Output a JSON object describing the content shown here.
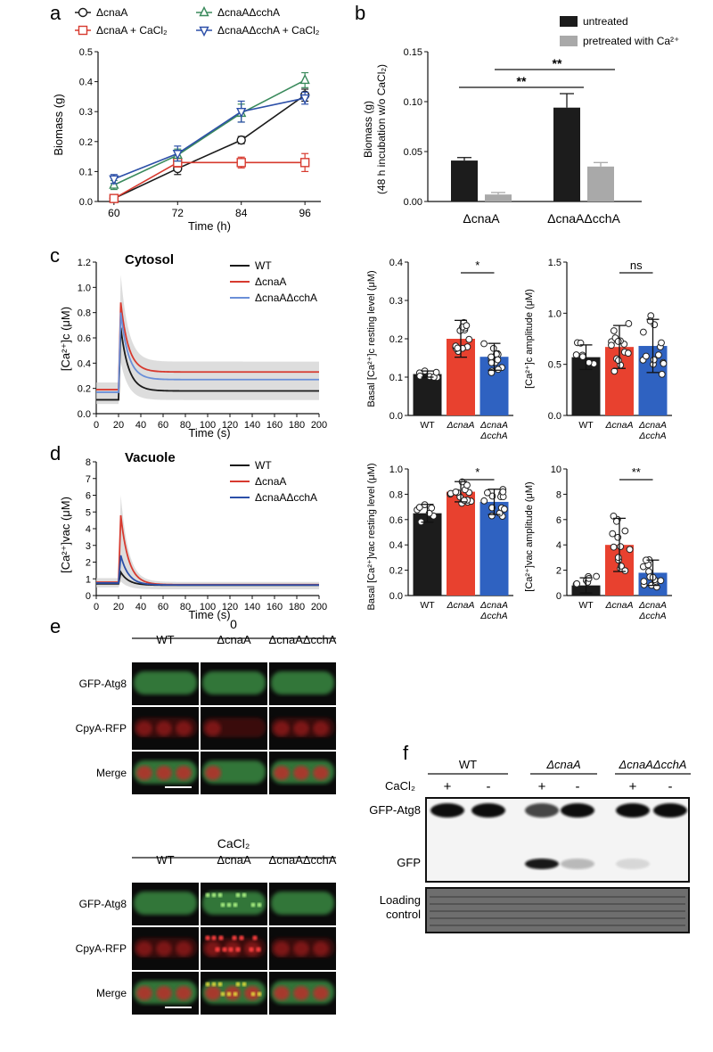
{
  "panel_labels": [
    "a",
    "b",
    "c",
    "d",
    "e",
    "f"
  ],
  "colors": {
    "black": "#1a1a1a",
    "red": "#d73a2f",
    "green": "#3a8a5c",
    "blue": "#2c4fa8",
    "lightblue": "#6a8fd8",
    "gray": "#a9a9a9",
    "bar_black": "#1c1c1c",
    "bar_red": "#e8412f",
    "bar_blue": "#2f62c1",
    "shade": "#cfcfcf"
  },
  "chart_data": [
    {
      "id": "a",
      "type": "line",
      "xlabel": "Time (h)",
      "ylabel": "Biomass (g)",
      "x": [
        60,
        72,
        84,
        96
      ],
      "xlim": [
        57,
        99
      ],
      "ylim": [
        0,
        0.5
      ],
      "yticks": [
        "0.0",
        "0.1",
        "0.2",
        "0.3",
        "0.4",
        "0.5"
      ],
      "xticks": [
        "60",
        "72",
        "84",
        "96"
      ],
      "series": [
        {
          "name": "ΔcnaA",
          "color": "#1a1a1a",
          "marker": "circle",
          "values": [
            0.01,
            0.11,
            0.205,
            0.355
          ],
          "err": [
            0.005,
            0.02,
            0.012,
            0.02
          ]
        },
        {
          "name": "ΔcnaA + CaCl₂",
          "color": "#d73a2f",
          "marker": "square",
          "values": [
            0.01,
            0.13,
            0.13,
            0.13
          ],
          "err": [
            0.005,
            0.015,
            0.018,
            0.03
          ]
        },
        {
          "name": "ΔcnaAΔcchA",
          "color": "#3a8a5c",
          "marker": "triangle-up",
          "values": [
            0.055,
            0.155,
            0.295,
            0.405
          ],
          "err": [
            0.015,
            0.02,
            0.03,
            0.025
          ]
        },
        {
          "name": "ΔcnaAΔcchA + CaCl₂",
          "color": "#2c4fa8",
          "marker": "triangle-down",
          "values": [
            0.075,
            0.16,
            0.3,
            0.345
          ],
          "err": [
            0.015,
            0.025,
            0.035,
            0.02
          ]
        }
      ],
      "legend": "top"
    },
    {
      "id": "b",
      "type": "bar",
      "ylabel_line1": "Biomass (g)",
      "ylabel_line2": "(48 h incubation w/o CaCl₂)",
      "categories": [
        "ΔcnaA",
        "ΔcnaAΔcchA"
      ],
      "ylim": [
        0,
        0.15
      ],
      "yticks": [
        "0.00",
        "0.05",
        "0.10",
        "0.15"
      ],
      "series": [
        {
          "name": "untreated",
          "color": "#1c1c1c",
          "values": [
            0.041,
            0.094
          ],
          "err": [
            0.003,
            0.014
          ]
        },
        {
          "name": "pretreated with Ca²⁺",
          "color": "#a9a9a9",
          "values": [
            0.007,
            0.035
          ],
          "err": [
            0.002,
            0.004
          ]
        }
      ],
      "significance": [
        "**",
        "**"
      ],
      "legend": "top-right"
    },
    {
      "id": "c_trace",
      "type": "line",
      "title": "Cytosol",
      "xlabel": "Time (s)",
      "ylabel": "[Ca²⁺]c  (μM)",
      "xlim": [
        0,
        200
      ],
      "ylim": [
        0,
        1.2
      ],
      "xticks": [
        "0",
        "20",
        "40",
        "60",
        "80",
        "100",
        "120",
        "140",
        "160",
        "180",
        "200"
      ],
      "yticks": [
        "0.0",
        "0.2",
        "0.4",
        "0.6",
        "0.8",
        "1.0",
        "1.2"
      ],
      "series": [
        {
          "name": "WT",
          "color": "#1a1a1a",
          "baseline": 0.11,
          "peak": 0.68,
          "plateau": 0.18
        },
        {
          "name": "ΔcnaA",
          "color": "#d73a2f",
          "baseline": 0.19,
          "peak": 0.88,
          "plateau": 0.33
        },
        {
          "name": "ΔcnaAΔcchA",
          "color": "#6a8fd8",
          "baseline": 0.17,
          "peak": 0.8,
          "plateau": 0.27
        }
      ],
      "legend": "top-right"
    },
    {
      "id": "c_basal",
      "type": "bar",
      "ylabel": "Basal [Ca²⁺]c resting level (μM)",
      "categories": [
        "WT",
        "ΔcnaA",
        "ΔcnaA ΔcchA"
      ],
      "values": [
        0.108,
        0.2,
        0.153
      ],
      "err": [
        0.008,
        0.048,
        0.035
      ],
      "ylim": [
        0,
        0.4
      ],
      "yticks": [
        "0.0",
        "0.1",
        "0.2",
        "0.3",
        "0.4"
      ],
      "significance": "*"
    },
    {
      "id": "c_amp",
      "type": "bar",
      "ylabel": "[Ca²⁺]c amplitude (μM)",
      "categories": [
        "WT",
        "ΔcnaA",
        "ΔcnaA ΔcchA"
      ],
      "values": [
        0.57,
        0.67,
        0.68
      ],
      "err": [
        0.12,
        0.21,
        0.26
      ],
      "ylim": [
        0,
        1.5
      ],
      "yticks": [
        "0.0",
        "0.5",
        "1.0",
        "1.5"
      ],
      "significance": "ns"
    },
    {
      "id": "d_trace",
      "type": "line",
      "title": "Vacuole",
      "xlabel": "Time (s)",
      "ylabel": "[Ca²⁺]vac  (μM)",
      "xlim": [
        0,
        200
      ],
      "ylim": [
        0,
        8
      ],
      "xticks": [
        "0",
        "20",
        "40",
        "60",
        "80",
        "100",
        "120",
        "140",
        "160",
        "180",
        "200"
      ],
      "yticks": [
        "0",
        "1",
        "2",
        "3",
        "4",
        "5",
        "6",
        "7",
        "8"
      ],
      "series": [
        {
          "name": "WT",
          "color": "#1a1a1a",
          "baseline": 0.7,
          "peak": 1.4,
          "plateau": 0.62
        },
        {
          "name": "ΔcnaA",
          "color": "#d73a2f",
          "baseline": 0.8,
          "peak": 4.8,
          "plateau": 0.65
        },
        {
          "name": "ΔcnaAΔcchA",
          "color": "#2c4fa8",
          "baseline": 0.75,
          "peak": 2.4,
          "plateau": 0.63
        }
      ],
      "legend": "top-right"
    },
    {
      "id": "d_basal",
      "type": "bar",
      "ylabel": "Basal [Ca²⁺]vac resting level (μM)",
      "categories": [
        "WT",
        "ΔcnaA",
        "ΔcnaA ΔcchA"
      ],
      "values": [
        0.65,
        0.82,
        0.74
      ],
      "err": [
        0.07,
        0.08,
        0.1
      ],
      "ylim": [
        0,
        1.0
      ],
      "yticks": [
        "0.0",
        "0.2",
        "0.4",
        "0.6",
        "0.8",
        "1.0"
      ],
      "significance": "*"
    },
    {
      "id": "d_amp",
      "type": "bar",
      "ylabel": "[Ca²⁺]vac amplitude (μM)",
      "categories": [
        "WT",
        "ΔcnaA",
        "ΔcnaA ΔcchA"
      ],
      "values": [
        0.8,
        4.0,
        1.8
      ],
      "err": [
        0.6,
        2.1,
        1.0
      ],
      "ylim": [
        0,
        10
      ],
      "yticks": [
        "0",
        "2",
        "4",
        "6",
        "8",
        "10"
      ],
      "significance": "**"
    }
  ],
  "panel_e": {
    "group_top": "0",
    "group_bottom": "CaCl₂",
    "columns": [
      "WT",
      "ΔcnaA",
      "ΔcnaAΔcchA"
    ],
    "rows": [
      "GFP-Atg8",
      "CpyA-RFP",
      "Merge"
    ]
  },
  "panel_f": {
    "strains": [
      "WT",
      "ΔcnaA",
      "ΔcnaAΔcchA"
    ],
    "treatment_label": "CaCl₂",
    "lanes": [
      "+",
      "-",
      "+",
      "-",
      "+",
      "-"
    ],
    "band_labels": [
      "GFP-Atg8",
      "GFP"
    ],
    "loading_label_1": "Loading",
    "loading_label_2": "control"
  }
}
